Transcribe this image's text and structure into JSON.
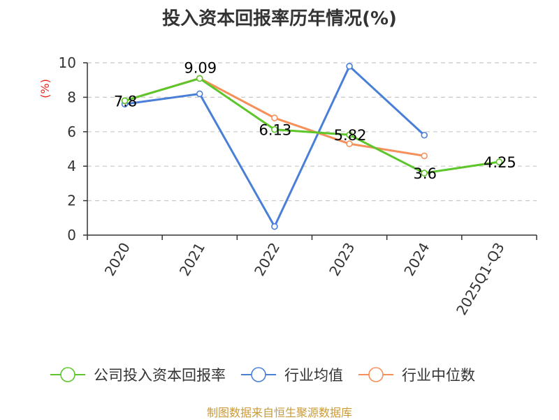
{
  "title": "投入资本回报率历年情况(%)",
  "source": "制图数据来自恒生聚源数据库",
  "chart_data": {
    "type": "line",
    "title": "投入资本回报率历年情况(%)",
    "ylabel": "(%)",
    "xlabel": "",
    "ylim": [
      0,
      10
    ],
    "yticks": [
      0,
      2,
      4,
      6,
      8,
      10
    ],
    "grid": true,
    "legend_position": "bottom",
    "categories": [
      "2020",
      "2021",
      "2022",
      "2023",
      "2024",
      "2025Q1-Q3"
    ],
    "series": [
      {
        "name": "公司投入资本回报率",
        "color": "#5cc62a",
        "values": [
          7.8,
          9.09,
          6.13,
          5.82,
          3.6,
          4.25
        ],
        "labels": [
          "7.8",
          "9.09",
          "6.13",
          "5.82",
          "3.6",
          "4.25"
        ]
      },
      {
        "name": "行业均值",
        "color": "#4a7fd8",
        "values": [
          7.6,
          8.2,
          0.5,
          9.8,
          5.8,
          null
        ]
      },
      {
        "name": "行业中位数",
        "color": "#f5905a",
        "values": [
          7.8,
          9.1,
          6.8,
          5.3,
          4.6,
          null
        ]
      }
    ]
  }
}
